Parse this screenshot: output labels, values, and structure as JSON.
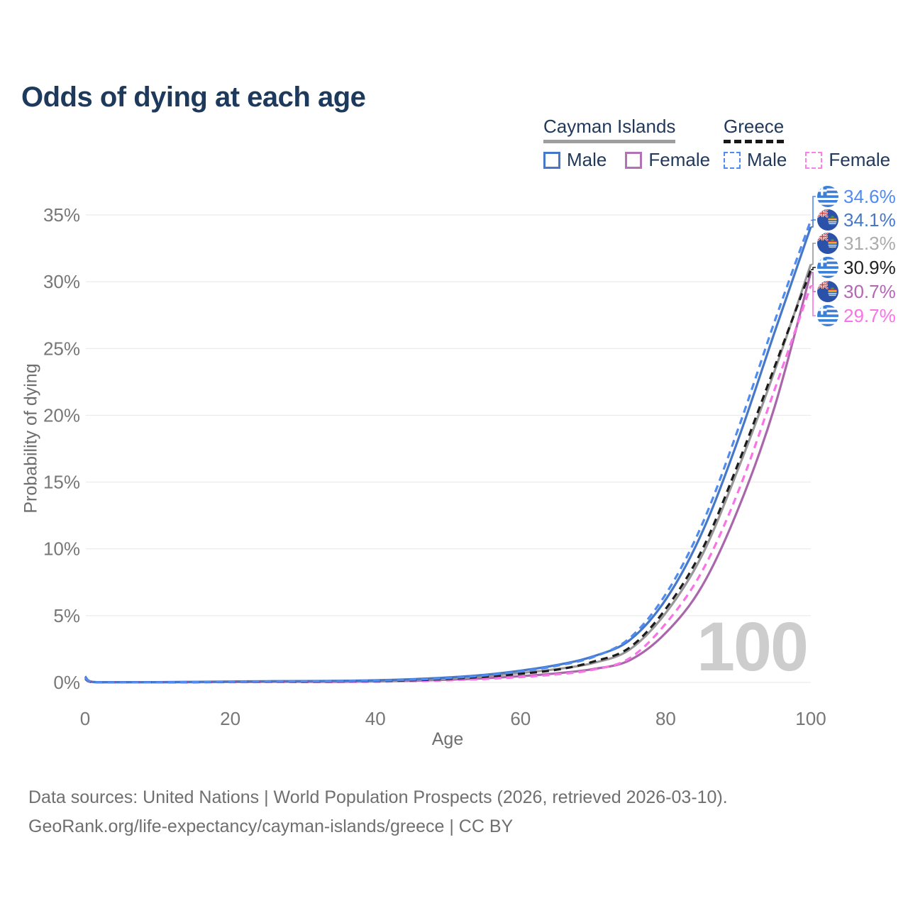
{
  "title": "Odds of dying at each age",
  "legend": {
    "groups": [
      {
        "label": "Cayman Islands",
        "dashed": false,
        "underline_color": "#9e9e9e",
        "items": [
          {
            "label": "Male",
            "color": "#4677c8",
            "dashed": false
          },
          {
            "label": "Female",
            "color": "#b173b3",
            "dashed": false
          }
        ]
      },
      {
        "label": "Greece",
        "dashed": true,
        "underline_color": "#181818",
        "items": [
          {
            "label": "Male",
            "color": "#4f8bf0",
            "dashed": true
          },
          {
            "label": "Female",
            "color": "#fb7fe9",
            "dashed": true
          }
        ]
      }
    ]
  },
  "footer": {
    "line1": "Data sources: United Nations | World Population Prospects (2026, retrieved 2026-03-10).",
    "line2": "GeoRank.org/life-expectancy/cayman-islands/greece | CC BY"
  },
  "end_labels": [
    {
      "series": "greece-male",
      "label": "34.6%",
      "label_color": "#4f8bf0",
      "flag": "greece"
    },
    {
      "series": "cayman-male",
      "label": "34.1%",
      "label_color": "#4677c8",
      "flag": "cayman-islands"
    },
    {
      "series": "cayman-all",
      "label": "31.3%",
      "label_color": "#ababab",
      "flag": "cayman-islands"
    },
    {
      "series": "greece-all",
      "label": "30.9%",
      "label_color": "#222222",
      "flag": "greece"
    },
    {
      "series": "cayman-female",
      "label": "30.7%",
      "label_color": "#b565b5",
      "flag": "cayman-islands"
    },
    {
      "series": "greece-female",
      "label": "29.7%",
      "label_color": "#f973e6",
      "flag": "greece"
    }
  ],
  "chart_data": {
    "type": "line",
    "title": "Odds of dying at each age",
    "xlabel": "Age",
    "ylabel": "Probability of dying",
    "xlim": [
      0,
      100
    ],
    "ylim": [
      0,
      35
    ],
    "grid": true,
    "legend_position": "top-right",
    "age_indicator": "100",
    "xticks": [
      {
        "value": 0,
        "label": "0"
      },
      {
        "value": 20,
        "label": "20"
      },
      {
        "value": 40,
        "label": "40"
      },
      {
        "value": 60,
        "label": "60"
      },
      {
        "value": 80,
        "label": "80"
      },
      {
        "value": 100,
        "label": "100"
      }
    ],
    "yticks": [
      {
        "value": 0,
        "label": "0%"
      },
      {
        "value": 5,
        "label": "5%"
      },
      {
        "value": 10,
        "label": "10%"
      },
      {
        "value": 15,
        "label": "15%"
      },
      {
        "value": 20,
        "label": "20%"
      },
      {
        "value": 25,
        "label": "25%"
      },
      {
        "value": 30,
        "label": "30%"
      },
      {
        "value": 35,
        "label": "35%"
      }
    ],
    "ages": [
      0,
      1,
      5,
      10,
      15,
      20,
      25,
      30,
      35,
      40,
      45,
      50,
      55,
      60,
      65,
      70,
      75,
      80,
      85,
      90,
      95,
      100
    ],
    "series": [
      {
        "id": "cayman-female",
        "name": "Cayman Islands Female",
        "country": "Cayman Islands",
        "sex": "female",
        "color": "#a966ab",
        "dashed": false,
        "end_value": 30.7,
        "values": [
          0.35,
          0.03,
          0.01,
          0.01,
          0.02,
          0.03,
          0.04,
          0.04,
          0.05,
          0.08,
          0.13,
          0.2,
          0.31,
          0.47,
          0.68,
          1.0,
          1.65,
          3.7,
          7.2,
          13.0,
          20.6,
          30.7
        ]
      },
      {
        "id": "cayman-all",
        "name": "Cayman Islands Both sexes",
        "country": "Cayman Islands",
        "sex": "all",
        "color": "#979797",
        "dashed": false,
        "end_value": 31.3,
        "values": [
          0.4,
          0.03,
          0.01,
          0.02,
          0.03,
          0.05,
          0.06,
          0.07,
          0.08,
          0.12,
          0.19,
          0.29,
          0.46,
          0.7,
          1.0,
          1.45,
          2.45,
          5.2,
          9.5,
          16.0,
          23.3,
          31.3
        ]
      },
      {
        "id": "cayman-male",
        "name": "Cayman Islands Male",
        "country": "Cayman Islands",
        "sex": "male",
        "color": "#4677c8",
        "dashed": false,
        "end_value": 34.1,
        "values": [
          0.45,
          0.04,
          0.02,
          0.02,
          0.04,
          0.07,
          0.09,
          0.1,
          0.12,
          0.16,
          0.24,
          0.37,
          0.57,
          0.88,
          1.3,
          1.95,
          3.15,
          6.2,
          11.2,
          18.2,
          26.2,
          34.1
        ]
      },
      {
        "id": "greece-female",
        "name": "Greece Female",
        "country": "Greece",
        "sex": "female",
        "color": "#f973e6",
        "dashed": true,
        "end_value": 29.7,
        "values": [
          0.25,
          0.02,
          0.01,
          0.01,
          0.02,
          0.02,
          0.03,
          0.03,
          0.04,
          0.06,
          0.1,
          0.16,
          0.26,
          0.4,
          0.6,
          0.95,
          1.8,
          4.4,
          8.3,
          14.3,
          21.9,
          29.7
        ]
      },
      {
        "id": "greece-all",
        "name": "Greece Both sexes",
        "country": "Greece",
        "sex": "all",
        "color": "#1c1c1c",
        "dashed": true,
        "end_value": 30.9,
        "values": [
          0.3,
          0.02,
          0.01,
          0.01,
          0.02,
          0.04,
          0.05,
          0.05,
          0.07,
          0.1,
          0.16,
          0.26,
          0.42,
          0.65,
          0.95,
          1.55,
          2.6,
          5.5,
          9.9,
          16.4,
          23.6,
          30.9
        ]
      },
      {
        "id": "greece-male",
        "name": "Greece Male",
        "country": "Greece",
        "sex": "male",
        "color": "#4f8bf0",
        "dashed": true,
        "end_value": 34.6,
        "values": [
          0.35,
          0.03,
          0.01,
          0.01,
          0.03,
          0.05,
          0.06,
          0.07,
          0.09,
          0.13,
          0.2,
          0.32,
          0.52,
          0.82,
          1.25,
          1.9,
          3.3,
          6.6,
          11.8,
          19.0,
          27.0,
          34.6
        ]
      }
    ]
  }
}
